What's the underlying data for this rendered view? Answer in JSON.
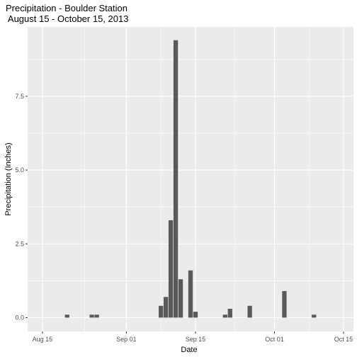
{
  "chart_data": {
    "type": "bar",
    "title": "Precipitation - Boulder Station",
    "subtitle": " August 15 - October 15, 2013",
    "xlabel": "Date",
    "ylabel": "Precipitation (Inches)",
    "x_ticks": [
      {
        "date": "2013-08-15",
        "label": "Aug 15"
      },
      {
        "date": "2013-09-01",
        "label": "Sep 01"
      },
      {
        "date": "2013-09-15",
        "label": "Sep 15"
      },
      {
        "date": "2013-10-01",
        "label": "Oct 01"
      },
      {
        "date": "2013-10-15",
        "label": "Oct 15"
      }
    ],
    "y_ticks": [
      {
        "value": 0,
        "label": "0.0"
      },
      {
        "value": 2.5,
        "label": "2.5"
      },
      {
        "value": 5,
        "label": "5.0"
      },
      {
        "value": 7.5,
        "label": "7.5"
      }
    ],
    "xlim": [
      "2013-08-12",
      "2013-10-17"
    ],
    "ylim": [
      -0.47,
      9.85
    ],
    "bar_color": "#595959",
    "panel_background": "#ebebeb",
    "grid_color": "#ffffff",
    "grid": true,
    "legend": "none",
    "bars": [
      {
        "date": "2013-08-20",
        "value": 0.1
      },
      {
        "date": "2013-08-25",
        "value": 0.1
      },
      {
        "date": "2013-08-26",
        "value": 0.1
      },
      {
        "date": "2013-09-08",
        "value": 0.4
      },
      {
        "date": "2013-09-09",
        "value": 0.7
      },
      {
        "date": "2013-09-10",
        "value": 3.3
      },
      {
        "date": "2013-09-11",
        "value": 9.4
      },
      {
        "date": "2013-09-12",
        "value": 1.3
      },
      {
        "date": "2013-09-14",
        "value": 1.6
      },
      {
        "date": "2013-09-15",
        "value": 0.2
      },
      {
        "date": "2013-09-21",
        "value": 0.1
      },
      {
        "date": "2013-09-22",
        "value": 0.3
      },
      {
        "date": "2013-09-26",
        "value": 0.4
      },
      {
        "date": "2013-10-03",
        "value": 0.9
      },
      {
        "date": "2013-10-09",
        "value": 0.1
      }
    ]
  }
}
